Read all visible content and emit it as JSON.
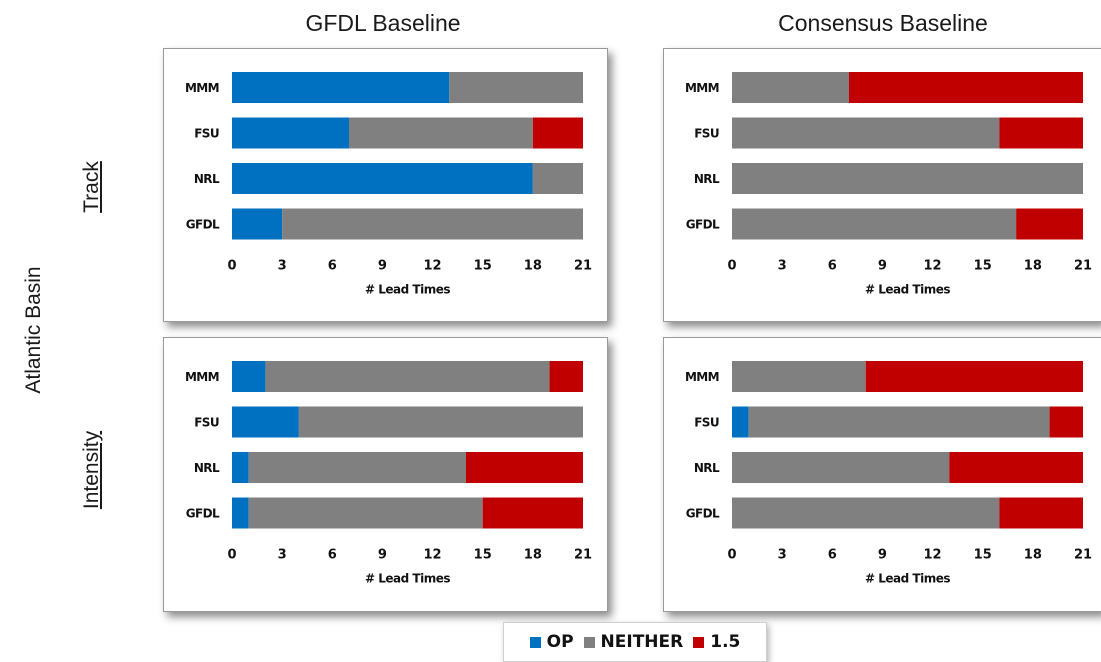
{
  "labels": {
    "col_left": "GFDL Baseline",
    "col_right": "Consensus Baseline",
    "row_top": "Track",
    "row_bottom": "Intensity",
    "basin": "Atlantic Basin"
  },
  "colors": {
    "OP": "#0070c0",
    "NEITHER": "#808080",
    "1.5": "#c00000"
  },
  "legend": [
    {
      "key": "OP",
      "label": "OP",
      "color": "#0070c0"
    },
    {
      "key": "NEITHER",
      "label": "NEITHER",
      "color": "#808080"
    },
    {
      "key": "1.5",
      "label": "1.5",
      "color": "#c00000"
    }
  ],
  "chart_data": [
    {
      "type": "bar",
      "orientation": "horizontal",
      "stacked": true,
      "panel": "Track / GFDL Baseline",
      "categories": [
        "MMM",
        "FSU",
        "NRL",
        "GFDL"
      ],
      "series": [
        {
          "name": "OP",
          "values": [
            13,
            7,
            18,
            3
          ]
        },
        {
          "name": "NEITHER",
          "values": [
            8,
            11,
            3,
            18
          ]
        },
        {
          "name": "1.5",
          "values": [
            0,
            3,
            0,
            0
          ]
        }
      ],
      "xlabel": "# Lead Times",
      "xticks": [
        "0",
        "3",
        "6",
        "9",
        "12",
        "15",
        "18",
        "21"
      ],
      "xlim": [
        0,
        21
      ]
    },
    {
      "type": "bar",
      "orientation": "horizontal",
      "stacked": true,
      "panel": "Track / Consensus Baseline",
      "categories": [
        "MMM",
        "FSU",
        "NRL",
        "GFDL"
      ],
      "series": [
        {
          "name": "OP",
          "values": [
            0,
            0,
            0,
            0
          ]
        },
        {
          "name": "NEITHER",
          "values": [
            7,
            16,
            21,
            17
          ]
        },
        {
          "name": "1.5",
          "values": [
            14,
            5,
            0,
            4
          ]
        }
      ],
      "xlabel": "# Lead Times",
      "xticks": [
        "0",
        "3",
        "6",
        "9",
        "12",
        "15",
        "18",
        "21"
      ],
      "xlim": [
        0,
        21
      ]
    },
    {
      "type": "bar",
      "orientation": "horizontal",
      "stacked": true,
      "panel": "Intensity / GFDL Baseline",
      "categories": [
        "MMM",
        "FSU",
        "NRL",
        "GFDL"
      ],
      "series": [
        {
          "name": "OP",
          "values": [
            2,
            4,
            1,
            1
          ]
        },
        {
          "name": "NEITHER",
          "values": [
            17,
            17,
            13,
            14
          ]
        },
        {
          "name": "1.5",
          "values": [
            2,
            0,
            7,
            6
          ]
        }
      ],
      "xlabel": "# Lead Times",
      "xticks": [
        "0",
        "3",
        "6",
        "9",
        "12",
        "15",
        "18",
        "21"
      ],
      "xlim": [
        0,
        21
      ]
    },
    {
      "type": "bar",
      "orientation": "horizontal",
      "stacked": true,
      "panel": "Intensity / Consensus Baseline",
      "categories": [
        "MMM",
        "FSU",
        "NRL",
        "GFDL"
      ],
      "series": [
        {
          "name": "OP",
          "values": [
            0,
            1,
            0,
            0
          ]
        },
        {
          "name": "NEITHER",
          "values": [
            8,
            18,
            13,
            16
          ]
        },
        {
          "name": "1.5",
          "values": [
            13,
            2,
            8,
            5
          ]
        }
      ],
      "xlabel": "# Lead Times",
      "xticks": [
        "0",
        "3",
        "6",
        "9",
        "12",
        "15",
        "18",
        "21"
      ],
      "xlim": [
        0,
        21
      ]
    }
  ]
}
